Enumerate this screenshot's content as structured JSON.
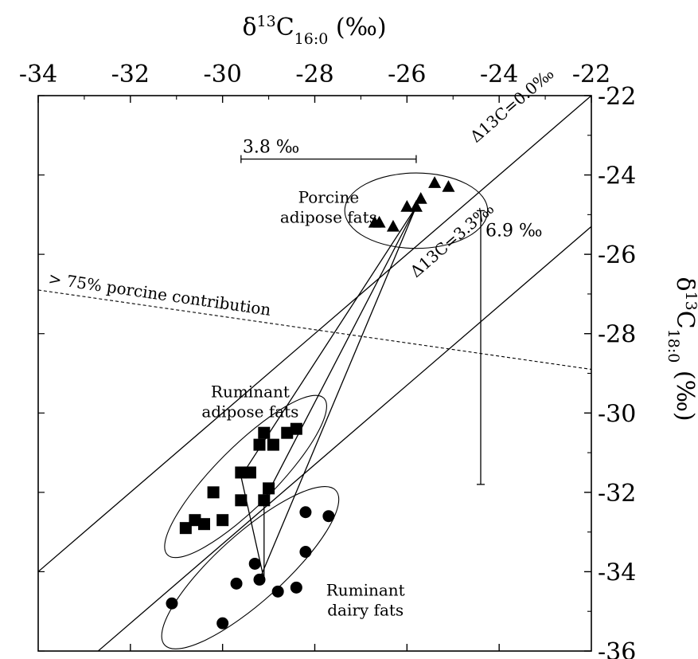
{
  "chart_data": {
    "type": "scatter",
    "title": "δ13C16:0 (‰)",
    "xlabel": "δ13C16:0 (‰)",
    "ylabel": "δ13C18:0 (‰)",
    "xlim": [
      -34,
      -22
    ],
    "ylim": [
      -36,
      -22
    ],
    "x_ticks": [
      -34,
      -32,
      -30,
      -28,
      -26,
      -24,
      -22
    ],
    "y_ticks": [
      -22,
      -24,
      -26,
      -28,
      -30,
      -32,
      -34,
      -36
    ],
    "grid": false,
    "legend": "none",
    "series": [
      {
        "name": "Porcine adipose fats",
        "marker": "triangle",
        "points": [
          [
            -26.7,
            -25.2
          ],
          [
            -26.6,
            -25.2
          ],
          [
            -26.3,
            -25.3
          ],
          [
            -26.0,
            -24.8
          ],
          [
            -25.8,
            -24.8
          ],
          [
            -25.7,
            -24.6
          ],
          [
            -25.4,
            -24.2
          ],
          [
            -25.1,
            -24.3
          ]
        ]
      },
      {
        "name": "Ruminant adipose fats",
        "marker": "square",
        "points": [
          [
            -29.1,
            -30.5
          ],
          [
            -28.9,
            -30.8
          ],
          [
            -29.2,
            -30.8
          ],
          [
            -28.6,
            -30.5
          ],
          [
            -28.4,
            -30.4
          ],
          [
            -29.6,
            -31.5
          ],
          [
            -29.4,
            -31.5
          ],
          [
            -29.0,
            -31.9
          ],
          [
            -29.6,
            -32.2
          ],
          [
            -29.1,
            -32.2
          ],
          [
            -30.2,
            -32.0
          ],
          [
            -30.6,
            -32.7
          ],
          [
            -30.4,
            -32.8
          ],
          [
            -30.0,
            -32.7
          ],
          [
            -30.8,
            -32.9
          ]
        ]
      },
      {
        "name": "Ruminant dairy fats",
        "marker": "circle",
        "points": [
          [
            -28.2,
            -32.5
          ],
          [
            -27.7,
            -32.6
          ],
          [
            -28.2,
            -33.5
          ],
          [
            -29.3,
            -33.8
          ],
          [
            -29.7,
            -34.3
          ],
          [
            -29.2,
            -34.2
          ],
          [
            -28.8,
            -34.5
          ],
          [
            -28.4,
            -34.4
          ],
          [
            -31.1,
            -34.8
          ],
          [
            -30.0,
            -35.3
          ]
        ]
      }
    ],
    "reference_lines": [
      {
        "label": "Δ13C=0.0‰",
        "from": [
          -34,
          -34
        ],
        "to": [
          -22,
          -22
        ],
        "style": "solid"
      },
      {
        "label": "Δ13C=3.3‰",
        "from": [
          -32.7,
          -36
        ],
        "to": [
          -22,
          -25.3
        ],
        "style": "solid"
      },
      {
        "label": "> 75% porcine contribution",
        "from": [
          -34,
          -26.9
        ],
        "to": [
          -22,
          -28.9
        ],
        "style": "dashed"
      }
    ],
    "connector_lines": [
      {
        "from": [
          -25.8,
          -24.8
        ],
        "to": [
          -29.6,
          -31.6
        ]
      },
      {
        "from": [
          -25.8,
          -24.8
        ],
        "to": [
          -29.1,
          -32.2
        ]
      },
      {
        "from": [
          -25.8,
          -24.8
        ],
        "to": [
          -29.2,
          -34.2
        ]
      },
      {
        "from": [
          -29.6,
          -31.6
        ],
        "to": [
          -29.1,
          -34.2
        ]
      },
      {
        "from": [
          -29.1,
          -32.2
        ],
        "to": [
          -29.1,
          -34.2
        ]
      }
    ],
    "ellipses": [
      {
        "label": "Porcine adipose fats",
        "center": [
          -25.8,
          -24.9
        ],
        "rx": 1.55,
        "ry": 0.95,
        "angle": 0
      },
      {
        "label": "Ruminant adipose fats",
        "center": [
          -29.5,
          -31.6
        ],
        "rx": 2.4,
        "ry": 0.75,
        "angle": 45
      },
      {
        "label": "Ruminant dairy fats",
        "center": [
          -29.4,
          -33.9
        ],
        "rx": 2.5,
        "ry": 0.85,
        "angle": 42
      }
    ],
    "annotations": {
      "range_x": {
        "label": "3.8 ‰",
        "x_from": -29.6,
        "x_to": -25.8,
        "y": -23.6
      },
      "range_y": {
        "label": "6.9 ‰",
        "y_from": -24.9,
        "y_to": -31.8,
        "x": -24.4
      },
      "group_labels": [
        {
          "lines": [
            "Porcine",
            "adipose fats"
          ],
          "x": -27.7,
          "y": -24.7
        },
        {
          "lines": [
            "Ruminant",
            "adipose fats"
          ],
          "x": -29.4,
          "y": -29.6
        },
        {
          "lines": [
            "Ruminant",
            "dairy fats"
          ],
          "x": -26.9,
          "y": -34.6
        }
      ],
      "line_labels": [
        {
          "text": "Δ13C=0.0‰",
          "x": -24.5,
          "y": -23.2
        },
        {
          "text": "Δ13C=3.3‰",
          "x": -25.8,
          "y": -26.6
        },
        {
          "text": "> 75% porcine contribution",
          "x": -34,
          "y": -26.7
        }
      ]
    }
  }
}
